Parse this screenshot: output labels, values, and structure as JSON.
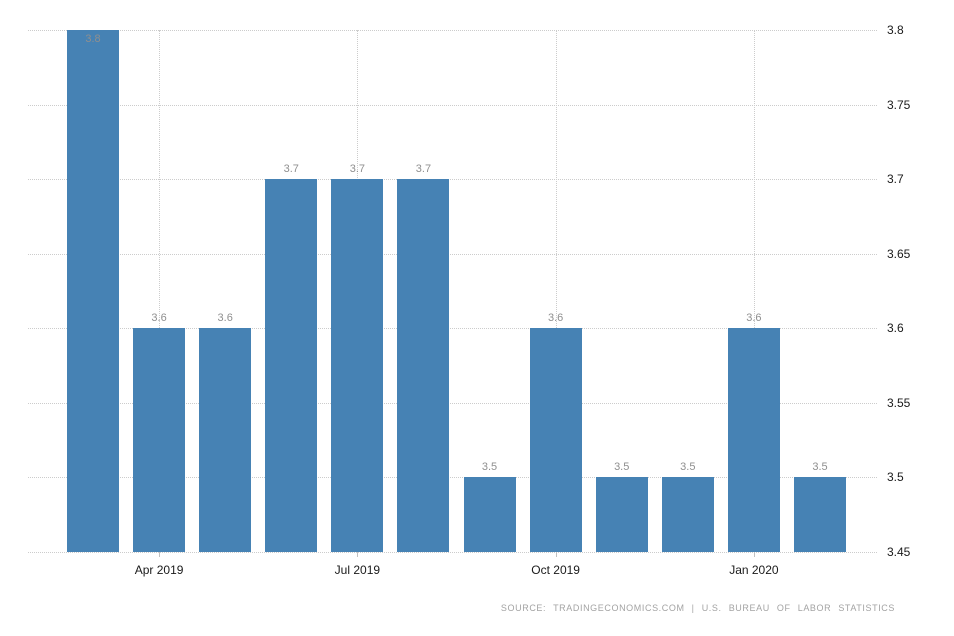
{
  "chart": {
    "source_note": "SOURCE: TRADINGECONOMICS.COM | U.S. BUREAU OF LABOR STATISTICS"
  },
  "chart_data": {
    "type": "bar",
    "title": "",
    "values": [
      3.8,
      3.6,
      3.6,
      3.7,
      3.7,
      3.7,
      3.5,
      3.6,
      3.5,
      3.5,
      3.6,
      3.5
    ],
    "bar_labels": [
      "3.8",
      "3.6",
      "3.6",
      "3.7",
      "3.7",
      "3.7",
      "3.5",
      "3.6",
      "3.5",
      "3.5",
      "3.6",
      "3.5"
    ],
    "x_ticks": [
      {
        "label": "Apr 2019",
        "bar_index": 1
      },
      {
        "label": "Jul 2019",
        "bar_index": 4
      },
      {
        "label": "Oct 2019",
        "bar_index": 7
      },
      {
        "label": "Jan 2020",
        "bar_index": 10
      }
    ],
    "y_ticks": [
      "3.8",
      "3.75",
      "3.7",
      "3.65",
      "3.6",
      "3.55",
      "3.5",
      "3.45"
    ],
    "ylim": [
      3.45,
      3.8
    ],
    "grid": "dotted",
    "legend": "none",
    "colors": {
      "bar": "#4682b4",
      "grid": "#cccccc",
      "bar_label": "#8f8f8f",
      "axis_label": "#1a1a1a",
      "source": "#a3a3a3"
    }
  }
}
